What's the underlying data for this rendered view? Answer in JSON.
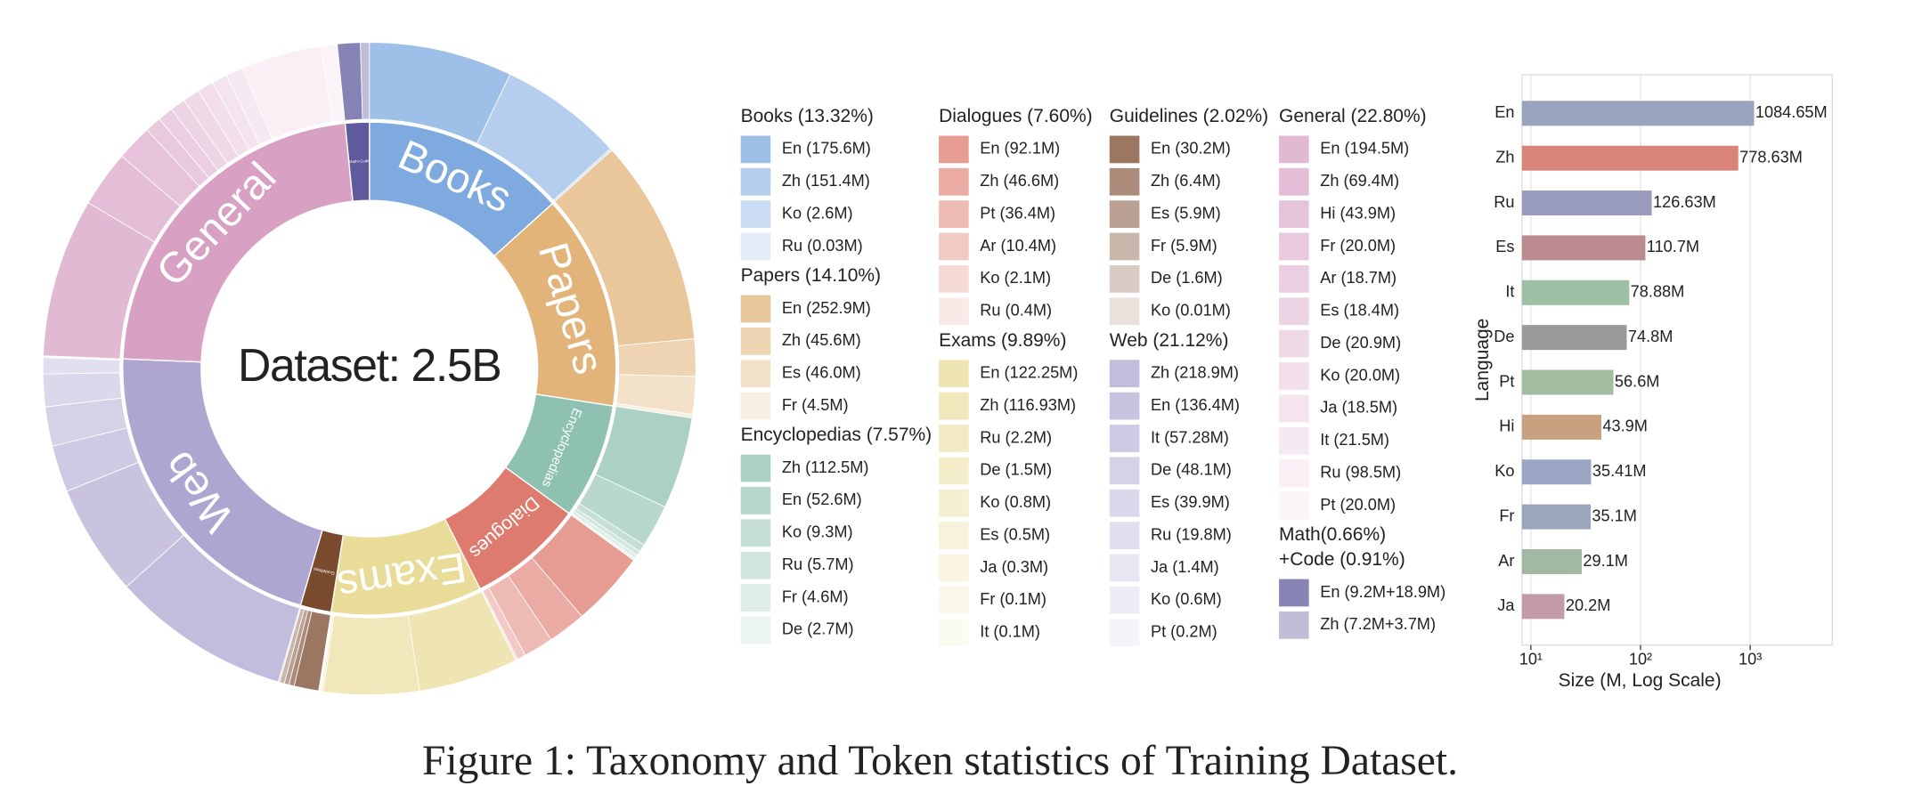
{
  "chart_data": [
    {
      "type": "sunburst",
      "title": "Dataset: 2.5B",
      "groups": [
        {
          "name": "Books",
          "legend": [
            "Books (13.32%)"
          ],
          "shares": [
            13.32
          ],
          "color": "#7eaadf",
          "items": [
            {
              "label": "En (175.6M)",
              "values": [
                175.6
              ]
            },
            {
              "label": "Zh (151.4M)",
              "values": [
                151.4
              ]
            },
            {
              "label": "Ko (2.6M)",
              "values": [
                2.6
              ]
            },
            {
              "label": "Ru (0.03M)",
              "values": [
                0.03
              ]
            }
          ]
        },
        {
          "name": "Papers",
          "legend": [
            "Papers (14.10%)"
          ],
          "shares": [
            14.1
          ],
          "color": "#e2b47a",
          "items": [
            {
              "label": "En (252.9M)",
              "values": [
                252.9
              ]
            },
            {
              "label": "Zh (45.6M)",
              "values": [
                45.6
              ]
            },
            {
              "label": "Es (46.0M)",
              "values": [
                46.0
              ]
            },
            {
              "label": "Fr (4.5M)",
              "values": [
                4.5
              ]
            }
          ]
        },
        {
          "name": "Encyclopedias",
          "legend": [
            "Encyclopedias (7.57%)"
          ],
          "shares": [
            7.57
          ],
          "color": "#8fc1b2",
          "items": [
            {
              "label": "Zh (112.5M)",
              "values": [
                112.5
              ]
            },
            {
              "label": "En (52.6M)",
              "values": [
                52.6
              ]
            },
            {
              "label": "Ko (9.3M)",
              "values": [
                9.3
              ]
            },
            {
              "label": "Ru (5.7M)",
              "values": [
                5.7
              ]
            },
            {
              "label": "Fr (4.6M)",
              "values": [
                4.6
              ]
            },
            {
              "label": "De (2.7M)",
              "values": [
                2.7
              ]
            }
          ]
        },
        {
          "name": "Dialogues",
          "legend": [
            "Dialogues (7.60%)"
          ],
          "shares": [
            7.6
          ],
          "color": "#dd7b6e",
          "items": [
            {
              "label": "En (92.1M)",
              "values": [
                92.1
              ]
            },
            {
              "label": "Zh (46.6M)",
              "values": [
                46.6
              ]
            },
            {
              "label": "Pt (36.4M)",
              "values": [
                36.4
              ]
            },
            {
              "label": "Ar (10.4M)",
              "values": [
                10.4
              ]
            },
            {
              "label": "Ko (2.1M)",
              "values": [
                2.1
              ]
            },
            {
              "label": "Ru (0.4M)",
              "values": [
                0.4
              ]
            }
          ]
        },
        {
          "name": "Exams",
          "legend": [
            "Exams (9.89%)"
          ],
          "shares": [
            9.89
          ],
          "color": "#e9dc98",
          "items": [
            {
              "label": "En (122.25M)",
              "values": [
                122.25
              ]
            },
            {
              "label": "Zh (116.93M)",
              "values": [
                116.93
              ]
            },
            {
              "label": "Ru (2.2M)",
              "values": [
                2.2
              ]
            },
            {
              "label": "De (1.5M)",
              "values": [
                1.5
              ]
            },
            {
              "label": "Ko (0.8M)",
              "values": [
                0.8
              ]
            },
            {
              "label": "Es (0.5M)",
              "values": [
                0.5
              ]
            },
            {
              "label": "Ja (0.3M)",
              "values": [
                0.3
              ]
            },
            {
              "label": "Fr (0.1M)",
              "values": [
                0.1
              ]
            },
            {
              "label": "It (0.1M)",
              "values": [
                0.1
              ]
            }
          ]
        },
        {
          "name": "Guidelines",
          "legend": [
            "Guidelines (2.02%)"
          ],
          "shares": [
            2.02
          ],
          "color": "#7a4a2e",
          "items": [
            {
              "label": "En (30.2M)",
              "values": [
                30.2
              ]
            },
            {
              "label": "Zh (6.4M)",
              "values": [
                6.4
              ]
            },
            {
              "label": "Es (5.9M)",
              "values": [
                5.9
              ]
            },
            {
              "label": "Fr (5.9M)",
              "values": [
                5.9
              ]
            },
            {
              "label": "De (1.6M)",
              "values": [
                1.6
              ]
            },
            {
              "label": "Ko (0.01M)",
              "values": [
                0.01
              ]
            }
          ]
        },
        {
          "name": "Web",
          "legend": [
            "Web (21.12%)"
          ],
          "shares": [
            21.12
          ],
          "color": "#aea6d1",
          "items": [
            {
              "label": "Zh (218.9M)",
              "values": [
                218.9
              ]
            },
            {
              "label": "En (136.4M)",
              "values": [
                136.4
              ]
            },
            {
              "label": "It (57.28M)",
              "values": [
                57.28
              ]
            },
            {
              "label": "De (48.1M)",
              "values": [
                48.1
              ]
            },
            {
              "label": "Es (39.9M)",
              "values": [
                39.9
              ]
            },
            {
              "label": "Ru (19.8M)",
              "values": [
                19.8
              ]
            },
            {
              "label": "Ja (1.4M)",
              "values": [
                1.4
              ]
            },
            {
              "label": "Ko (0.6M)",
              "values": [
                0.6
              ]
            },
            {
              "label": "Pt (0.2M)",
              "values": [
                0.2
              ]
            }
          ]
        },
        {
          "name": "General",
          "legend": [
            "General (22.80%)"
          ],
          "shares": [
            22.8
          ],
          "color": "#d8a1c4",
          "items": [
            {
              "label": "En (194.5M)",
              "values": [
                194.5
              ]
            },
            {
              "label": "Zh (69.4M)",
              "values": [
                69.4
              ]
            },
            {
              "label": "Hi (43.9M)",
              "values": [
                43.9
              ]
            },
            {
              "label": "Fr (20.0M)",
              "values": [
                20.0
              ]
            },
            {
              "label": "Ar (18.7M)",
              "values": [
                18.7
              ]
            },
            {
              "label": "Es (18.4M)",
              "values": [
                18.4
              ]
            },
            {
              "label": "De (20.9M)",
              "values": [
                20.9
              ]
            },
            {
              "label": "Ko (20.0M)",
              "values": [
                20.0
              ]
            },
            {
              "label": "Ja (18.5M)",
              "values": [
                18.5
              ]
            },
            {
              "label": "It (21.5M)",
              "values": [
                21.5
              ]
            },
            {
              "label": "Ru (98.5M)",
              "values": [
                98.5
              ]
            },
            {
              "label": "Pt (20.0M)",
              "values": [
                20.0
              ]
            }
          ]
        },
        {
          "name": "Math+Code",
          "legend": [
            "Math(0.66%)",
            "+Code (0.91%)"
          ],
          "shares": [
            0.66,
            0.91
          ],
          "color": "#5f5a9c",
          "items": [
            {
              "label": "En (9.2M+18.9M)",
              "values": [
                9.2,
                18.9
              ]
            },
            {
              "label": "Zh (7.2M+3.7M)",
              "values": [
                7.2,
                3.7
              ]
            }
          ]
        }
      ]
    },
    {
      "type": "bar",
      "orientation": "horizontal",
      "log_x": true,
      "grid": true,
      "xlabel": "Size (M, Log Scale)",
      "ylabel": "Language",
      "categories": [
        "En",
        "Zh",
        "Ru",
        "Es",
        "It",
        "De",
        "Pt",
        "Hi",
        "Ko",
        "Fr",
        "Ar",
        "Ja"
      ],
      "values": [
        1084.65,
        778.63,
        126.63,
        110.7,
        78.88,
        74.8,
        56.6,
        43.9,
        35.41,
        35.1,
        29.1,
        20.2
      ],
      "value_labels": [
        "1084.65M",
        "778.63M",
        "126.63M",
        "110.7M",
        "78.88M",
        "74.8M",
        "56.6M",
        "43.9M",
        "35.41M",
        "35.1M",
        "29.1M",
        "20.2M"
      ],
      "colors": [
        "#99a3bd",
        "#d9857a",
        "#9a9cbd",
        "#bb8a8f",
        "#9dbfa3",
        "#999999",
        "#a3bda3",
        "#c9a080",
        "#9aa6c3",
        "#9aa6bb",
        "#a3b8a3",
        "#c29aa9"
      ],
      "xlim": [
        8.3,
        5600
      ],
      "xticks": [
        {
          "value": 10,
          "label": "10¹"
        },
        {
          "value": 100,
          "label": "10²"
        },
        {
          "value": 1000,
          "label": "10³"
        }
      ]
    }
  ],
  "caption": "Figure 1: Taxonomy and Token statistics of Training Dataset."
}
